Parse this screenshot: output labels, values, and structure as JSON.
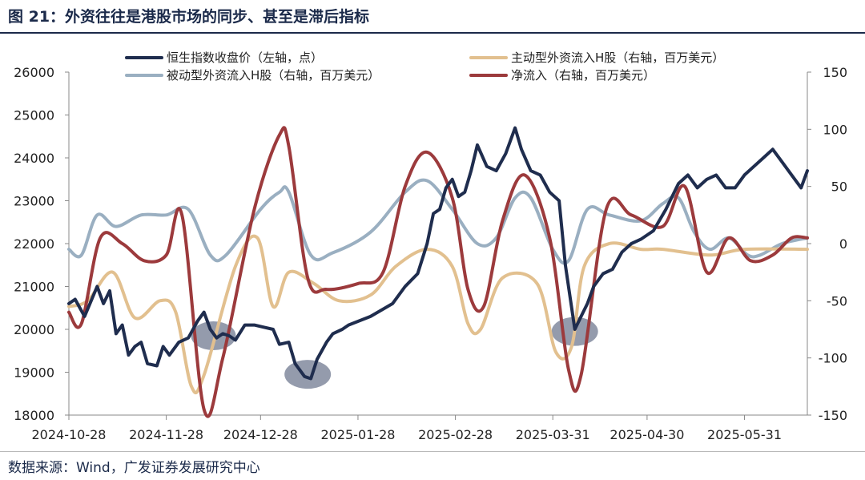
{
  "title": "图 21：外资往往是港股市场的同步、甚至是滞后指标",
  "source": "数据来源：Wind，广发证券发展研究中心",
  "colors": {
    "hsi": "#1f2d4e",
    "active": "#e2c08f",
    "passive": "#9aafc1",
    "net": "#9c3a3c",
    "highlight": "#5b6680"
  },
  "chart_data": {
    "type": "line",
    "x_ticks": [
      "2024-10-28",
      "2024-11-28",
      "2024-12-28",
      "2025-01-28",
      "2025-02-28",
      "2025-03-31",
      "2025-04-30",
      "2025-05-31"
    ],
    "x_range": [
      "2024-10-28",
      "2025-06-20"
    ],
    "y_left": {
      "min": 18000,
      "max": 26000,
      "ticks": [
        "18000",
        "19000",
        "20000",
        "21000",
        "22000",
        "23000",
        "24000",
        "25000",
        "26000"
      ]
    },
    "y_right": {
      "min": -150,
      "max": 150,
      "ticks": [
        "-150",
        "-100",
        "-50",
        "0",
        "50",
        "100",
        "150"
      ]
    },
    "grid": false,
    "legend_placement": "top",
    "series": [
      {
        "name": "恒生指数收盘价（左轴，点）",
        "axis": "left",
        "color": "#1f2d4e",
        "points": [
          [
            "2024-10-28",
            20600
          ],
          [
            "2024-10-30",
            20700
          ],
          [
            "2024-11-02",
            20300
          ],
          [
            "2024-11-06",
            21000
          ],
          [
            "2024-11-08",
            20600
          ],
          [
            "2024-11-10",
            20900
          ],
          [
            "2024-11-12",
            19900
          ],
          [
            "2024-11-14",
            20100
          ],
          [
            "2024-11-16",
            19400
          ],
          [
            "2024-11-18",
            19600
          ],
          [
            "2024-11-20",
            19700
          ],
          [
            "2024-11-22",
            19200
          ],
          [
            "2024-11-25",
            19150
          ],
          [
            "2024-11-27",
            19600
          ],
          [
            "2024-11-29",
            19400
          ],
          [
            "2024-12-02",
            19700
          ],
          [
            "2024-12-05",
            19800
          ],
          [
            "2024-12-08",
            20200
          ],
          [
            "2024-12-10",
            20400
          ],
          [
            "2024-12-12",
            20000
          ],
          [
            "2024-12-14",
            19800
          ],
          [
            "2024-12-16",
            19900
          ],
          [
            "2024-12-18",
            19850
          ],
          [
            "2024-12-20",
            19750
          ],
          [
            "2024-12-23",
            20100
          ],
          [
            "2024-12-26",
            20100
          ],
          [
            "2024-12-29",
            20050
          ],
          [
            "2025-01-01",
            20000
          ],
          [
            "2025-01-03",
            19650
          ],
          [
            "2025-01-06",
            19700
          ],
          [
            "2025-01-08",
            19200
          ],
          [
            "2025-01-11",
            18900
          ],
          [
            "2025-01-13",
            18850
          ],
          [
            "2025-01-15",
            19300
          ],
          [
            "2025-01-18",
            19700
          ],
          [
            "2025-01-20",
            19900
          ],
          [
            "2025-01-23",
            20000
          ],
          [
            "2025-01-25",
            20100
          ],
          [
            "2025-02-01",
            20300
          ],
          [
            "2025-02-08",
            20600
          ],
          [
            "2025-02-12",
            21000
          ],
          [
            "2025-02-16",
            21300
          ],
          [
            "2025-02-19",
            22000
          ],
          [
            "2025-02-21",
            22700
          ],
          [
            "2025-02-23",
            22800
          ],
          [
            "2025-02-25",
            23300
          ],
          [
            "2025-02-27",
            23500
          ],
          [
            "2025-03-01",
            23100
          ],
          [
            "2025-03-03",
            23200
          ],
          [
            "2025-03-05",
            23700
          ],
          [
            "2025-03-07",
            24300
          ],
          [
            "2025-03-10",
            23800
          ],
          [
            "2025-03-13",
            23700
          ],
          [
            "2025-03-16",
            24100
          ],
          [
            "2025-03-19",
            24700
          ],
          [
            "2025-03-21",
            24200
          ],
          [
            "2025-03-24",
            23700
          ],
          [
            "2025-03-27",
            23600
          ],
          [
            "2025-03-30",
            23200
          ],
          [
            "2025-04-02",
            23000
          ],
          [
            "2025-04-04",
            21500
          ],
          [
            "2025-04-07",
            20000
          ],
          [
            "2025-04-09",
            20300
          ],
          [
            "2025-04-11",
            20600
          ],
          [
            "2025-04-13",
            21000
          ],
          [
            "2025-04-16",
            21300
          ],
          [
            "2025-04-19",
            21400
          ],
          [
            "2025-04-22",
            21800
          ],
          [
            "2025-04-25",
            22000
          ],
          [
            "2025-04-28",
            22100
          ],
          [
            "2025-05-02",
            22300
          ],
          [
            "2025-05-06",
            22800
          ],
          [
            "2025-05-10",
            23400
          ],
          [
            "2025-05-13",
            23600
          ],
          [
            "2025-05-16",
            23300
          ],
          [
            "2025-05-19",
            23500
          ],
          [
            "2025-05-22",
            23600
          ],
          [
            "2025-05-25",
            23300
          ],
          [
            "2025-05-28",
            23300
          ],
          [
            "2025-05-31",
            23600
          ],
          [
            "2025-06-03",
            23800
          ],
          [
            "2025-06-06",
            24000
          ],
          [
            "2025-06-09",
            24200
          ],
          [
            "2025-06-12",
            23900
          ],
          [
            "2025-06-15",
            23600
          ],
          [
            "2025-06-18",
            23300
          ],
          [
            "2025-06-20",
            23700
          ]
        ]
      },
      {
        "name": "被动型外资流入H股（右轴，百万美元）",
        "axis": "right",
        "color": "#9aafc1",
        "points": [
          [
            "2024-10-28",
            -5
          ],
          [
            "2024-11-01",
            -10
          ],
          [
            "2024-11-06",
            25
          ],
          [
            "2024-11-12",
            15
          ],
          [
            "2024-11-20",
            25
          ],
          [
            "2024-11-28",
            25
          ],
          [
            "2024-12-05",
            30
          ],
          [
            "2024-12-12",
            -10
          ],
          [
            "2024-12-17",
            -10
          ],
          [
            "2024-12-28",
            30
          ],
          [
            "2025-01-03",
            45
          ],
          [
            "2025-01-06",
            45
          ],
          [
            "2025-01-13",
            -10
          ],
          [
            "2025-01-20",
            -8
          ],
          [
            "2025-02-01",
            10
          ],
          [
            "2025-02-12",
            45
          ],
          [
            "2025-02-19",
            55
          ],
          [
            "2025-02-27",
            30
          ],
          [
            "2025-03-07",
            0
          ],
          [
            "2025-03-13",
            5
          ],
          [
            "2025-03-19",
            40
          ],
          [
            "2025-03-24",
            40
          ],
          [
            "2025-03-31",
            -5
          ],
          [
            "2025-04-05",
            -15
          ],
          [
            "2025-04-11",
            30
          ],
          [
            "2025-04-18",
            25
          ],
          [
            "2025-04-28",
            20
          ],
          [
            "2025-05-05",
            35
          ],
          [
            "2025-05-10",
            40
          ],
          [
            "2025-05-15",
            10
          ],
          [
            "2025-05-20",
            -5
          ],
          [
            "2025-05-26",
            5
          ],
          [
            "2025-06-01",
            -10
          ],
          [
            "2025-06-05",
            -10
          ],
          [
            "2025-06-12",
            0
          ],
          [
            "2025-06-20",
            5
          ]
        ]
      },
      {
        "name": "主动型外资流入H股（右轴，百万美元）",
        "axis": "right",
        "color": "#e2c08f",
        "points": [
          [
            "2024-10-28",
            -55
          ],
          [
            "2024-11-03",
            -50
          ],
          [
            "2024-11-11",
            -25
          ],
          [
            "2024-11-18",
            -65
          ],
          [
            "2024-11-26",
            -50
          ],
          [
            "2024-12-01",
            -60
          ],
          [
            "2024-12-06",
            -125
          ],
          [
            "2024-12-10",
            -115
          ],
          [
            "2024-12-20",
            -20
          ],
          [
            "2024-12-27",
            5
          ],
          [
            "2025-01-01",
            -55
          ],
          [
            "2025-01-06",
            -25
          ],
          [
            "2025-01-14",
            -35
          ],
          [
            "2025-01-22",
            -50
          ],
          [
            "2025-02-01",
            -45
          ],
          [
            "2025-02-09",
            -20
          ],
          [
            "2025-02-19",
            -5
          ],
          [
            "2025-02-27",
            -20
          ],
          [
            "2025-03-04",
            -70
          ],
          [
            "2025-03-08",
            -75
          ],
          [
            "2025-03-15",
            -30
          ],
          [
            "2025-03-26",
            -35
          ],
          [
            "2025-04-01",
            -95
          ],
          [
            "2025-04-06",
            -90
          ],
          [
            "2025-04-10",
            -20
          ],
          [
            "2025-04-18",
            0
          ],
          [
            "2025-04-28",
            -5
          ],
          [
            "2025-05-05",
            -5
          ],
          [
            "2025-05-20",
            -10
          ],
          [
            "2025-05-31",
            -5
          ],
          [
            "2025-06-20",
            -5
          ]
        ]
      },
      {
        "name": "净流入（右轴，百万美元）",
        "axis": "right",
        "color": "#9c3a3c",
        "points": [
          [
            "2024-10-28",
            -60
          ],
          [
            "2024-11-01",
            -70
          ],
          [
            "2024-11-07",
            5
          ],
          [
            "2024-11-14",
            0
          ],
          [
            "2024-11-21",
            -15
          ],
          [
            "2024-11-28",
            -10
          ],
          [
            "2024-12-03",
            25
          ],
          [
            "2024-12-10",
            -145
          ],
          [
            "2024-12-16",
            -100
          ],
          [
            "2024-12-26",
            30
          ],
          [
            "2025-01-03",
            95
          ],
          [
            "2025-01-06",
            85
          ],
          [
            "2025-01-12",
            -30
          ],
          [
            "2025-01-18",
            -40
          ],
          [
            "2025-01-28",
            -35
          ],
          [
            "2025-02-05",
            -25
          ],
          [
            "2025-02-12",
            50
          ],
          [
            "2025-02-19",
            80
          ],
          [
            "2025-02-27",
            40
          ],
          [
            "2025-03-04",
            -40
          ],
          [
            "2025-03-09",
            -55
          ],
          [
            "2025-03-15",
            20
          ],
          [
            "2025-03-22",
            60
          ],
          [
            "2025-03-30",
            5
          ],
          [
            "2025-04-05",
            -110
          ],
          [
            "2025-04-09",
            -115
          ],
          [
            "2025-04-17",
            30
          ],
          [
            "2025-04-25",
            25
          ],
          [
            "2025-05-05",
            15
          ],
          [
            "2025-05-12",
            50
          ],
          [
            "2025-05-19",
            -25
          ],
          [
            "2025-05-26",
            5
          ],
          [
            "2025-06-02",
            -15
          ],
          [
            "2025-06-09",
            -10
          ],
          [
            "2025-06-15",
            5
          ],
          [
            "2025-06-20",
            5
          ]
        ]
      }
    ]
  }
}
